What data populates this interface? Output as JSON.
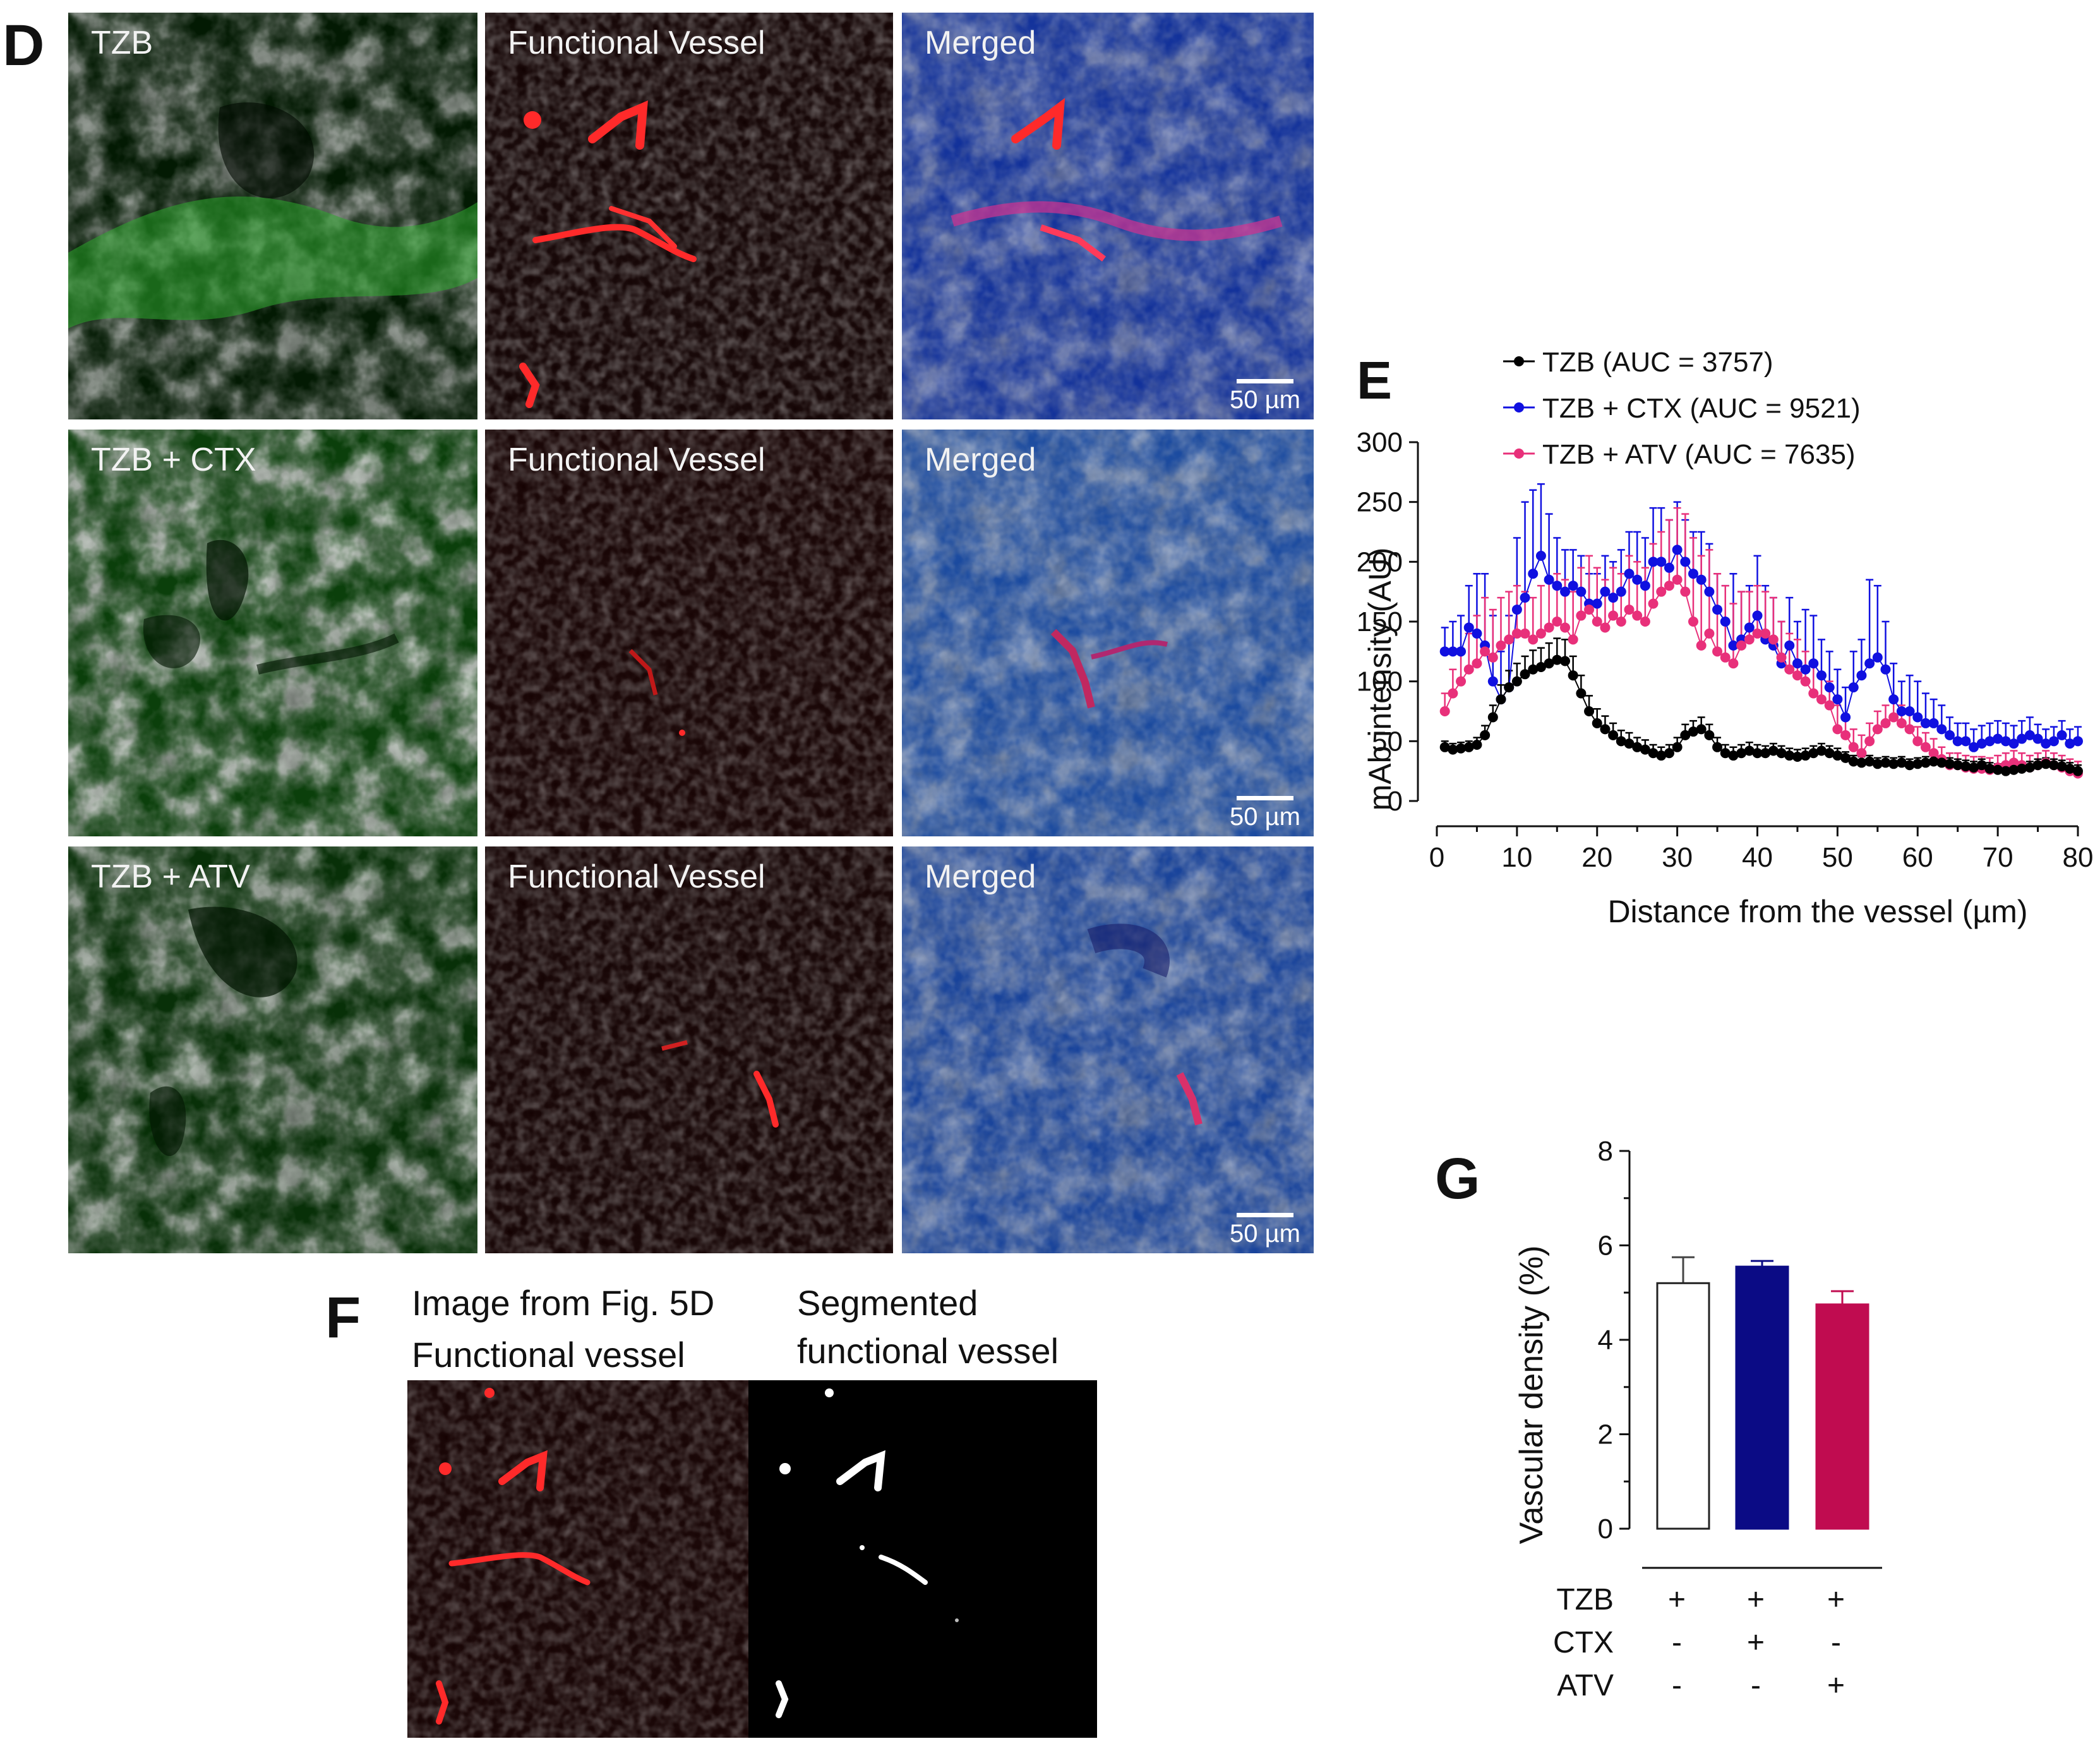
{
  "panel_letters": {
    "d": "D",
    "e": "E",
    "f": "F",
    "g": "G"
  },
  "micrographs": {
    "rows": [
      {
        "group": "TZB",
        "vessel": "Functional Vessel",
        "merged": "Merged",
        "scale": "50 µm"
      },
      {
        "group": "TZB + CTX",
        "vessel": "Functional Vessel",
        "merged": "Merged",
        "scale": "50 µm"
      },
      {
        "group": "TZB + ATV",
        "vessel": "Functional Vessel",
        "merged": "Merged",
        "scale": "50 µm"
      }
    ],
    "colors": {
      "green": "#36c636",
      "red": "#ff2020",
      "blue": "#2050d8",
      "magenta": "#e0309a"
    }
  },
  "panel_f": {
    "left_title_line1": "Image from Fig. 5D",
    "left_title_line2": "Functional vessel",
    "right_title_line1": "Segmented",
    "right_title_line2": "functional vessel"
  },
  "chart_data": [
    {
      "id": "E",
      "type": "line",
      "xlabel": "Distance from the vessel (µm)",
      "ylabel": "mAb intensity (AU)",
      "xlim": [
        0,
        80
      ],
      "ylim": [
        0,
        300
      ],
      "xticks": [
        0,
        10,
        20,
        30,
        40,
        50,
        60,
        70,
        80
      ],
      "yticks": [
        0,
        50,
        100,
        150,
        200,
        250,
        300
      ],
      "legend_position": "top",
      "error_bars": "upper only",
      "x": [
        1,
        2,
        3,
        4,
        5,
        6,
        7,
        8,
        9,
        10,
        11,
        12,
        13,
        14,
        15,
        16,
        17,
        18,
        19,
        20,
        21,
        22,
        23,
        24,
        25,
        26,
        27,
        28,
        29,
        30,
        31,
        32,
        33,
        34,
        35,
        36,
        37,
        38,
        39,
        40,
        41,
        42,
        43,
        44,
        45,
        46,
        47,
        48,
        49,
        50,
        51,
        52,
        53,
        54,
        55,
        56,
        57,
        58,
        59,
        60,
        61,
        62,
        63,
        64,
        65,
        66,
        67,
        68,
        69,
        70,
        71,
        72,
        73,
        74,
        75,
        76,
        77,
        78,
        79,
        80
      ],
      "series": [
        {
          "name": "TZB (AUC = 3757)",
          "color": "#000000",
          "values": [
            45,
            43,
            44,
            45,
            47,
            55,
            70,
            85,
            95,
            100,
            106,
            110,
            112,
            115,
            118,
            117,
            105,
            90,
            75,
            65,
            60,
            55,
            50,
            48,
            45,
            43,
            40,
            38,
            40,
            45,
            55,
            58,
            60,
            55,
            45,
            40,
            38,
            40,
            42,
            40,
            40,
            42,
            40,
            38,
            37,
            38,
            40,
            42,
            40,
            38,
            36,
            33,
            32,
            33,
            31,
            32,
            31,
            32,
            30,
            31,
            32,
            33,
            32,
            31,
            30,
            29,
            28,
            30,
            27,
            26,
            25,
            26,
            27,
            28,
            30,
            31,
            30,
            29,
            27,
            25
          ],
          "err": [
            5,
            5,
            5,
            5,
            6,
            8,
            10,
            12,
            14,
            15,
            15,
            16,
            16,
            17,
            18,
            18,
            16,
            15,
            13,
            12,
            11,
            10,
            9,
            9,
            8,
            8,
            7,
            7,
            7,
            8,
            9,
            9,
            10,
            9,
            8,
            7,
            7,
            7,
            7,
            7,
            6,
            6,
            6,
            6,
            6,
            6,
            6,
            6,
            6,
            6,
            5,
            5,
            5,
            5,
            5,
            5,
            5,
            5,
            5,
            5,
            5,
            5,
            5,
            5,
            5,
            5,
            5,
            5,
            5,
            5,
            5,
            5,
            5,
            5,
            5,
            5,
            5,
            5,
            5,
            5
          ]
        },
        {
          "name": "TZB + CTX  (AUC = 9521)",
          "color": "#1010e0",
          "values": [
            125,
            125,
            125,
            145,
            140,
            130,
            100,
            85,
            95,
            160,
            170,
            190,
            205,
            185,
            180,
            175,
            180,
            175,
            165,
            165,
            175,
            170,
            175,
            190,
            185,
            180,
            200,
            200,
            195,
            210,
            200,
            190,
            185,
            175,
            160,
            150,
            130,
            135,
            145,
            155,
            135,
            130,
            115,
            130,
            115,
            110,
            115,
            105,
            95,
            85,
            70,
            95,
            105,
            115,
            120,
            110,
            85,
            75,
            75,
            70,
            65,
            65,
            60,
            55,
            50,
            50,
            45,
            48,
            50,
            52,
            50,
            48,
            52,
            55,
            52,
            48,
            50,
            55,
            48,
            50
          ],
          "err": [
            20,
            25,
            30,
            35,
            50,
            60,
            55,
            40,
            60,
            60,
            80,
            70,
            60,
            55,
            40,
            35,
            30,
            30,
            25,
            25,
            30,
            30,
            35,
            35,
            40,
            40,
            45,
            45,
            40,
            40,
            35,
            35,
            40,
            40,
            30,
            30,
            60,
            40,
            35,
            50,
            45,
            40,
            35,
            40,
            35,
            50,
            40,
            30,
            30,
            25,
            25,
            30,
            30,
            70,
            60,
            40,
            30,
            25,
            30,
            30,
            25,
            20,
            20,
            15,
            15,
            15,
            15,
            15,
            15,
            15,
            15,
            15,
            15,
            15,
            12,
            12,
            12,
            12,
            12,
            12
          ]
        },
        {
          "name": "TZB + ATV (AUC = 7635)",
          "color": "#e8307a",
          "values": [
            75,
            90,
            100,
            110,
            115,
            125,
            120,
            130,
            135,
            140,
            140,
            135,
            140,
            145,
            150,
            145,
            135,
            155,
            160,
            150,
            145,
            155,
            150,
            160,
            155,
            150,
            165,
            175,
            180,
            185,
            175,
            150,
            130,
            140,
            125,
            120,
            115,
            130,
            135,
            140,
            140,
            135,
            120,
            110,
            105,
            100,
            90,
            85,
            80,
            60,
            55,
            45,
            40,
            50,
            60,
            65,
            70,
            65,
            60,
            50,
            45,
            40,
            35,
            30,
            30,
            28,
            27,
            27,
            26,
            28,
            30,
            32,
            30,
            28,
            30,
            32,
            30,
            28,
            25,
            23
          ],
          "err": [
            15,
            20,
            25,
            30,
            40,
            45,
            40,
            40,
            40,
            40,
            35,
            35,
            40,
            40,
            40,
            40,
            40,
            40,
            45,
            45,
            40,
            40,
            40,
            45,
            45,
            45,
            50,
            50,
            55,
            60,
            65,
            70,
            75,
            70,
            65,
            60,
            50,
            45,
            40,
            40,
            35,
            35,
            30,
            30,
            30,
            25,
            25,
            20,
            20,
            20,
            15,
            15,
            15,
            15,
            15,
            15,
            15,
            15,
            15,
            12,
            12,
            12,
            10,
            10,
            10,
            10,
            10,
            10,
            10,
            10,
            10,
            10,
            10,
            10,
            10,
            10,
            10,
            10,
            10,
            10
          ]
        }
      ]
    },
    {
      "id": "G",
      "type": "bar",
      "ylabel": "Vascular density (%)",
      "ylim": [
        0,
        8
      ],
      "yticks": [
        0,
        2,
        4,
        6,
        8
      ],
      "categories": [
        "TZB only",
        "TZB + CTX",
        "TZB + ATV"
      ],
      "values": [
        5.2,
        5.55,
        4.75
      ],
      "errors": [
        0.55,
        0.12,
        0.28
      ],
      "colors": [
        "#ffffff",
        "#0b0b85",
        "#c00c50"
      ],
      "condition_table": {
        "rows": [
          {
            "label": "TZB",
            "marks": [
              "+",
              "+",
              "+"
            ]
          },
          {
            "label": "CTX",
            "marks": [
              "-",
              "+",
              "-"
            ]
          },
          {
            "label": "ATV",
            "marks": [
              "-",
              "-",
              "+"
            ]
          }
        ]
      }
    }
  ]
}
